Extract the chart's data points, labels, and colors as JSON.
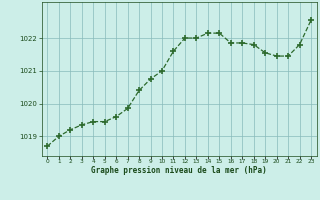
{
  "hours": [
    0,
    1,
    2,
    3,
    4,
    5,
    6,
    7,
    8,
    9,
    10,
    11,
    12,
    13,
    14,
    15,
    16,
    17,
    18,
    19,
    20,
    21,
    22,
    23
  ],
  "pressure": [
    1018.7,
    1019.0,
    1019.2,
    1019.35,
    1019.45,
    1019.45,
    1019.6,
    1019.85,
    1020.4,
    1020.75,
    1021.0,
    1021.6,
    1022.0,
    1022.0,
    1022.15,
    1022.15,
    1021.85,
    1021.85,
    1021.8,
    1021.55,
    1021.45,
    1021.45,
    1021.8,
    1022.55
  ],
  "line_color": "#2d6a2d",
  "marker_color": "#2d6a2d",
  "bg_color": "#cceee8",
  "grid_color": "#88bbbb",
  "xlabel": "Graphe pression niveau de la mer (hPa)",
  "xlabel_color": "#1a4a1a",
  "tick_color": "#1a4a1a",
  "yticks": [
    1019,
    1020,
    1021,
    1022
  ],
  "ylim": [
    1018.4,
    1023.1
  ],
  "xlim": [
    -0.5,
    23.5
  ]
}
